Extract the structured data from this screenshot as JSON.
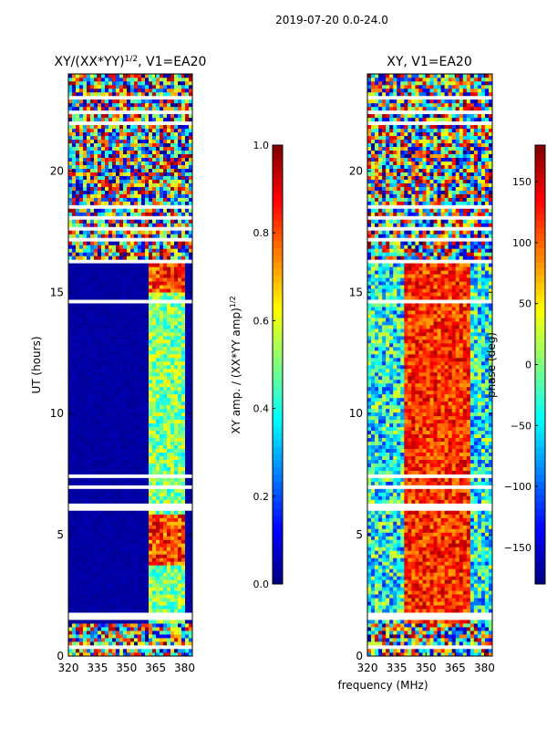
{
  "figure_title": "2019-07-20 0.0-24.0",
  "colors": {
    "frame": "#000000",
    "gap": "#ffffff"
  },
  "chart_data": [
    {
      "type": "heatmap",
      "title": "XY/(XX*YY)",
      "title_exponent": "1/2",
      "title_suffix": ", V1=EA20",
      "xlabel": "frequency (MHz)",
      "ylabel": "UT (hours)",
      "xlim": [
        320,
        384
      ],
      "ylim": [
        0,
        24
      ],
      "xticks": [
        320,
        335,
        350,
        365,
        380
      ],
      "xtick_labels": [
        "320",
        "335",
        "350",
        "365",
        "380"
      ],
      "yticks": [
        0,
        5,
        10,
        15,
        20
      ],
      "ytick_labels": [
        "0",
        "5",
        "10",
        "15",
        "20"
      ],
      "colormap": "jet",
      "colorbar": {
        "label": "XY amp. / (XX*YY amp)",
        "label_exponent": "1/2",
        "range": [
          0.0,
          1.0
        ],
        "ticks": [
          0.0,
          0.2,
          0.4,
          0.6,
          0.8,
          1.0
        ],
        "tick_labels": [
          "0.0",
          "0.2",
          "0.4",
          "0.6",
          "0.8",
          "1.0"
        ]
      },
      "value_model": {
        "noisy_time_ranges": [
          [
            0,
            1.4
          ],
          [
            16.4,
            24
          ]
        ],
        "signal_freq_range": [
          361,
          380
        ],
        "low_value": 0.02,
        "signal_value": 0.5,
        "bright_time_ranges": [
          [
            3.8,
            5.8
          ],
          [
            15.0,
            17.0
          ]
        ],
        "bright_value": 0.82
      }
    },
    {
      "type": "heatmap",
      "title": "XY, V1=EA20",
      "xlabel": "frequency (MHz)",
      "ylabel": "",
      "xlim": [
        320,
        384
      ],
      "ylim": [
        0,
        24
      ],
      "xticks": [
        320,
        335,
        350,
        365,
        380
      ],
      "xtick_labels": [
        "320",
        "335",
        "350",
        "365",
        "380"
      ],
      "yticks": [
        0,
        5,
        10,
        15,
        20
      ],
      "ytick_labels": [
        "0",
        "5",
        "10",
        "15",
        "20"
      ],
      "colormap": "jet",
      "colorbar": {
        "label": "phase (deg)",
        "range": [
          -180,
          180
        ],
        "ticks": [
          -150,
          -100,
          -50,
          0,
          50,
          100,
          150
        ],
        "tick_labels": [
          "−150",
          "−100",
          "−50",
          "0",
          "50",
          "100",
          "150"
        ]
      },
      "value_model": {
        "noisy_time_ranges": [
          [
            0,
            1.4
          ],
          [
            16.4,
            24
          ]
        ],
        "warm_band_mhz": [
          338,
          372
        ],
        "warm_value": 120,
        "cool_value": -40
      }
    }
  ],
  "time_gaps_hours": [
    [
      0.35,
      0.45
    ],
    [
      1.45,
      1.75
    ],
    [
      5.95,
      6.35
    ],
    [
      6.9,
      7.05
    ],
    [
      7.4,
      7.5
    ],
    [
      14.5,
      14.65
    ],
    [
      16.25,
      16.4
    ],
    [
      17.1,
      17.25
    ],
    [
      17.55,
      17.7
    ],
    [
      18.05,
      18.2
    ],
    [
      18.4,
      18.55
    ],
    [
      19.3,
      19.4
    ],
    [
      20.5,
      20.58
    ],
    [
      21.9,
      21.98
    ],
    [
      22.35,
      22.45
    ],
    [
      23.0,
      23.1
    ]
  ],
  "no_data_freq_ranges_mhz": [
    [
      377,
      378
    ],
    [
      372,
      373
    ]
  ]
}
